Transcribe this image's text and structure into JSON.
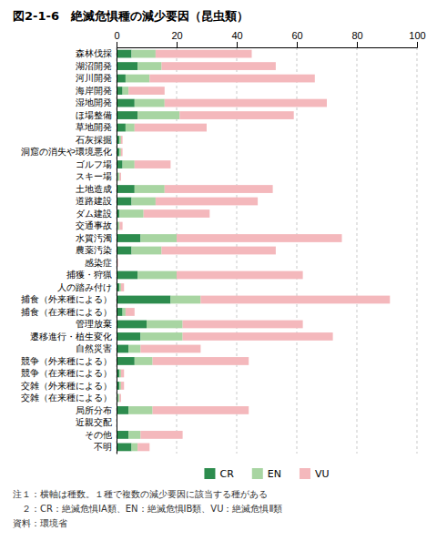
{
  "chart_data": {
    "type": "bar",
    "title": "図2-1-6　絶滅危惧種の減少要因（昆虫類）",
    "orientation": "horizontal",
    "stacked": true,
    "grid": true,
    "legend": "bottom",
    "categories": [
      "森林伐採",
      "湖沼開発",
      "河川開発",
      "海岸開発",
      "湿地開発",
      "ほ場整備",
      "草地開発",
      "石灰採掘",
      "洞窟の消失や環境悪化",
      "ゴルフ場",
      "スキー場",
      "土地造成",
      "道路建設",
      "ダム建設",
      "交通事故",
      "水質汚濁",
      "農薬汚染",
      "感染症",
      "捕獲・狩猟",
      "人の踏み付け",
      "捕食（外来種による）",
      "捕食（在来種による）",
      "管理放棄",
      "遷移進行・植生変化",
      "自然災害",
      "競争（外来種による）",
      "競争（在来種による）",
      "交雑（外来種による）",
      "交雑（在来種による）",
      "局所分布",
      "近親交配",
      "その他",
      "不明"
    ],
    "series": [
      {
        "name": "CR",
        "color": "#2d8c4e",
        "values": [
          5,
          7,
          3,
          2,
          6,
          7,
          3,
          1,
          1,
          2,
          0.5,
          6,
          5,
          1,
          0.5,
          8,
          5,
          0,
          7,
          1,
          18,
          2,
          10,
          8,
          4,
          6,
          1,
          1,
          0.5,
          4,
          0,
          4,
          5
        ]
      },
      {
        "name": "EN",
        "color": "#a8d5a2",
        "values": [
          8,
          8,
          8,
          2,
          10,
          14,
          3,
          0.5,
          0.5,
          4,
          0.5,
          10,
          8,
          8,
          0.5,
          12,
          10,
          0,
          13,
          0.5,
          10,
          1,
          12,
          14,
          4,
          6,
          0.5,
          0.5,
          0.5,
          8,
          0,
          4,
          2
        ]
      },
      {
        "name": "VU",
        "color": "#f4b8bc",
        "values": [
          32,
          38,
          55,
          12,
          54,
          38,
          24,
          0.5,
          0.5,
          12,
          0.5,
          36,
          34,
          22,
          1,
          55,
          38,
          0.5,
          42,
          1,
          63,
          3,
          40,
          50,
          20,
          32,
          1,
          1,
          0.5,
          32,
          0,
          14,
          4
        ]
      }
    ],
    "xlim": [
      0,
      100
    ],
    "xticks": [
      0,
      20,
      40,
      60,
      80,
      100
    ],
    "annotations": [
      "注１：横軸は種数。１種で複数の減少要因に該当する種がある",
      "　２：CR：絶滅危惧ⅠA類、EN：絶滅危惧ⅠB類、VU：絶滅危惧Ⅱ類",
      "資料：環境省"
    ]
  }
}
